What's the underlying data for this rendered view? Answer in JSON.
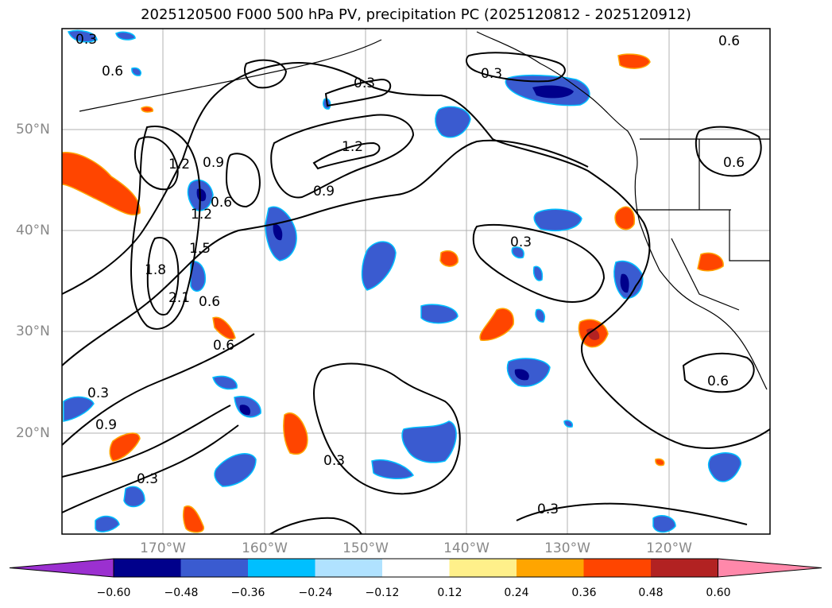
{
  "title": "2025120500 F000 500 hPa PV, precipitation PC (2025120812 - 2025120912)",
  "lat_labels": [
    "50°N",
    "40°N",
    "30°N",
    "20°N"
  ],
  "lon_labels": [
    "170°W",
    "160°W",
    "150°W",
    "140°W",
    "130°W",
    "120°W"
  ],
  "contour_labels": [
    "0.3",
    "0.6",
    "0.9",
    "1.2",
    "1.5",
    "1.8",
    "2.1",
    "0.3",
    "0.6",
    "0.3",
    "0.6",
    "0.9",
    "1.2",
    "0.3",
    "0.6",
    "0.6",
    "0.3",
    "0.3",
    "0.3",
    "0.9",
    "1.2",
    "0.3",
    "0.6",
    "0.6"
  ],
  "colorbar": {
    "ticks": [
      "−0.60",
      "−0.48",
      "−0.36",
      "−0.24",
      "−0.12",
      "0.12",
      "0.24",
      "0.36",
      "0.48",
      "0.60"
    ],
    "colors": [
      "#9b30d0",
      "#00008b",
      "#3a5bd0",
      "#00bfff",
      "#b0e2ff",
      "#ffffff",
      "#fff08a",
      "#ffa500",
      "#ff4500",
      "#b22222",
      "#ff88aa"
    ]
  }
}
